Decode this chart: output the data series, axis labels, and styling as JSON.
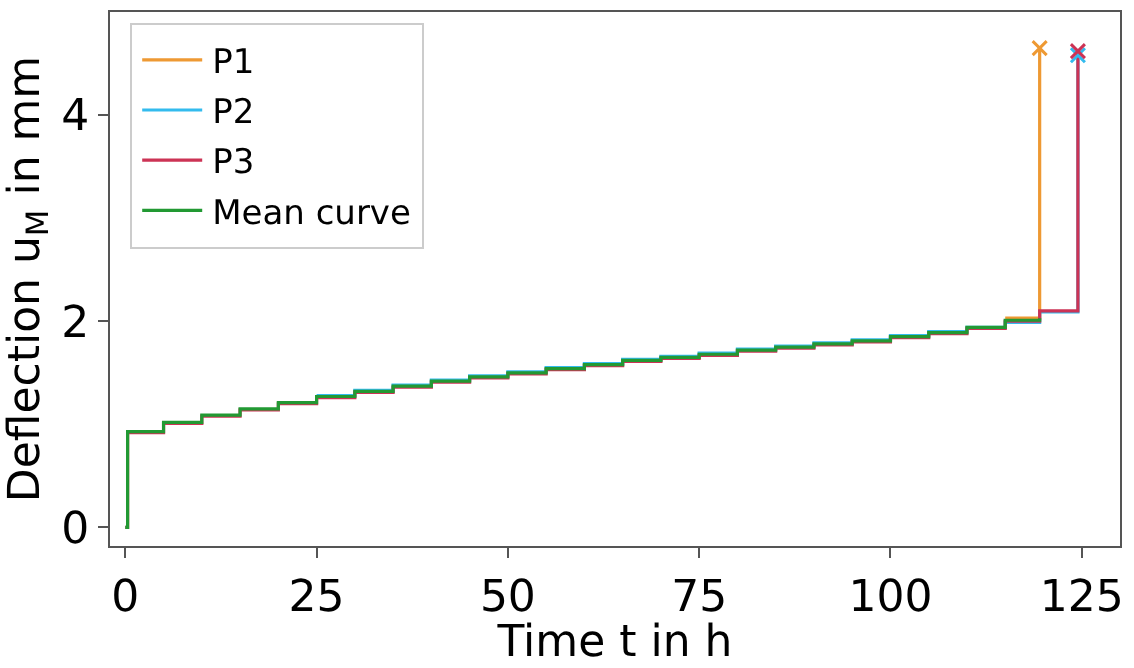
{
  "chart_data": {
    "type": "step",
    "xlabel": "Time t in h",
    "ylabel": "Deflection u$_{M}$ in mm",
    "xlim": [
      -2,
      130
    ],
    "ylim": [
      -0.18,
      5.0
    ],
    "xticks": [
      0,
      25,
      50,
      75,
      100,
      125
    ],
    "yticks": [
      0,
      2,
      4
    ],
    "legend": "top left",
    "marker": "none",
    "line_style": "solid",
    "series": [
      {
        "name": "P1",
        "color": "#ee9933",
        "x": [
          115,
          119.5
        ],
        "values": [
          2.03,
          4.65
        ]
      },
      {
        "name": "P2",
        "color": "#33bbee",
        "x": [
          25,
          30,
          35,
          40,
          45,
          50,
          55,
          60,
          65,
          70,
          75,
          80,
          85,
          90,
          95,
          100,
          105,
          110,
          115,
          119.5,
          124.5
        ],
        "values": [
          1.28,
          1.33,
          1.38,
          1.43,
          1.47,
          1.51,
          1.55,
          1.59,
          1.63,
          1.66,
          1.69,
          1.73,
          1.76,
          1.79,
          1.82,
          1.86,
          1.9,
          1.94,
          1.99,
          2.09,
          4.58
        ]
      },
      {
        "name": "P3",
        "color": "#cc3355",
        "x": [
          0,
          0.3,
          5,
          10,
          15,
          20,
          25,
          30,
          35,
          40,
          45,
          50,
          55,
          60,
          65,
          70,
          75,
          80,
          85,
          90,
          95,
          100,
          105,
          110,
          115,
          119.5,
          124.5
        ],
        "values": [
          0,
          0.92,
          1.01,
          1.08,
          1.14,
          1.2,
          1.26,
          1.31,
          1.36,
          1.41,
          1.45,
          1.49,
          1.53,
          1.57,
          1.61,
          1.64,
          1.67,
          1.71,
          1.74,
          1.77,
          1.8,
          1.84,
          1.88,
          1.93,
          2.0,
          2.1,
          4.62
        ]
      },
      {
        "name": "Mean curve",
        "color": "#229933",
        "x": [
          0,
          0.3,
          5,
          10,
          15,
          20,
          25,
          30,
          35,
          40,
          45,
          50,
          55,
          60,
          65,
          70,
          75,
          80,
          85,
          90,
          95,
          100,
          105,
          110,
          115,
          119.5
        ],
        "values": [
          0,
          0.93,
          1.02,
          1.09,
          1.15,
          1.21,
          1.27,
          1.32,
          1.37,
          1.42,
          1.46,
          1.5,
          1.54,
          1.58,
          1.62,
          1.65,
          1.68,
          1.72,
          1.75,
          1.78,
          1.81,
          1.85,
          1.89,
          1.94,
          2.01,
          2.03
        ]
      },
      {
        "type": "scatter",
        "marker": "cross",
        "color": "#ee9933",
        "x": [
          119.5
        ],
        "values": [
          4.65
        ]
      },
      {
        "type": "scatter",
        "marker": "cross",
        "color": "#33bbee",
        "x": [
          124.5
        ],
        "values": [
          4.58
        ]
      },
      {
        "type": "scatter",
        "marker": "cross",
        "color": "#cc3355",
        "x": [
          124.5
        ],
        "values": [
          4.62
        ]
      }
    ]
  }
}
